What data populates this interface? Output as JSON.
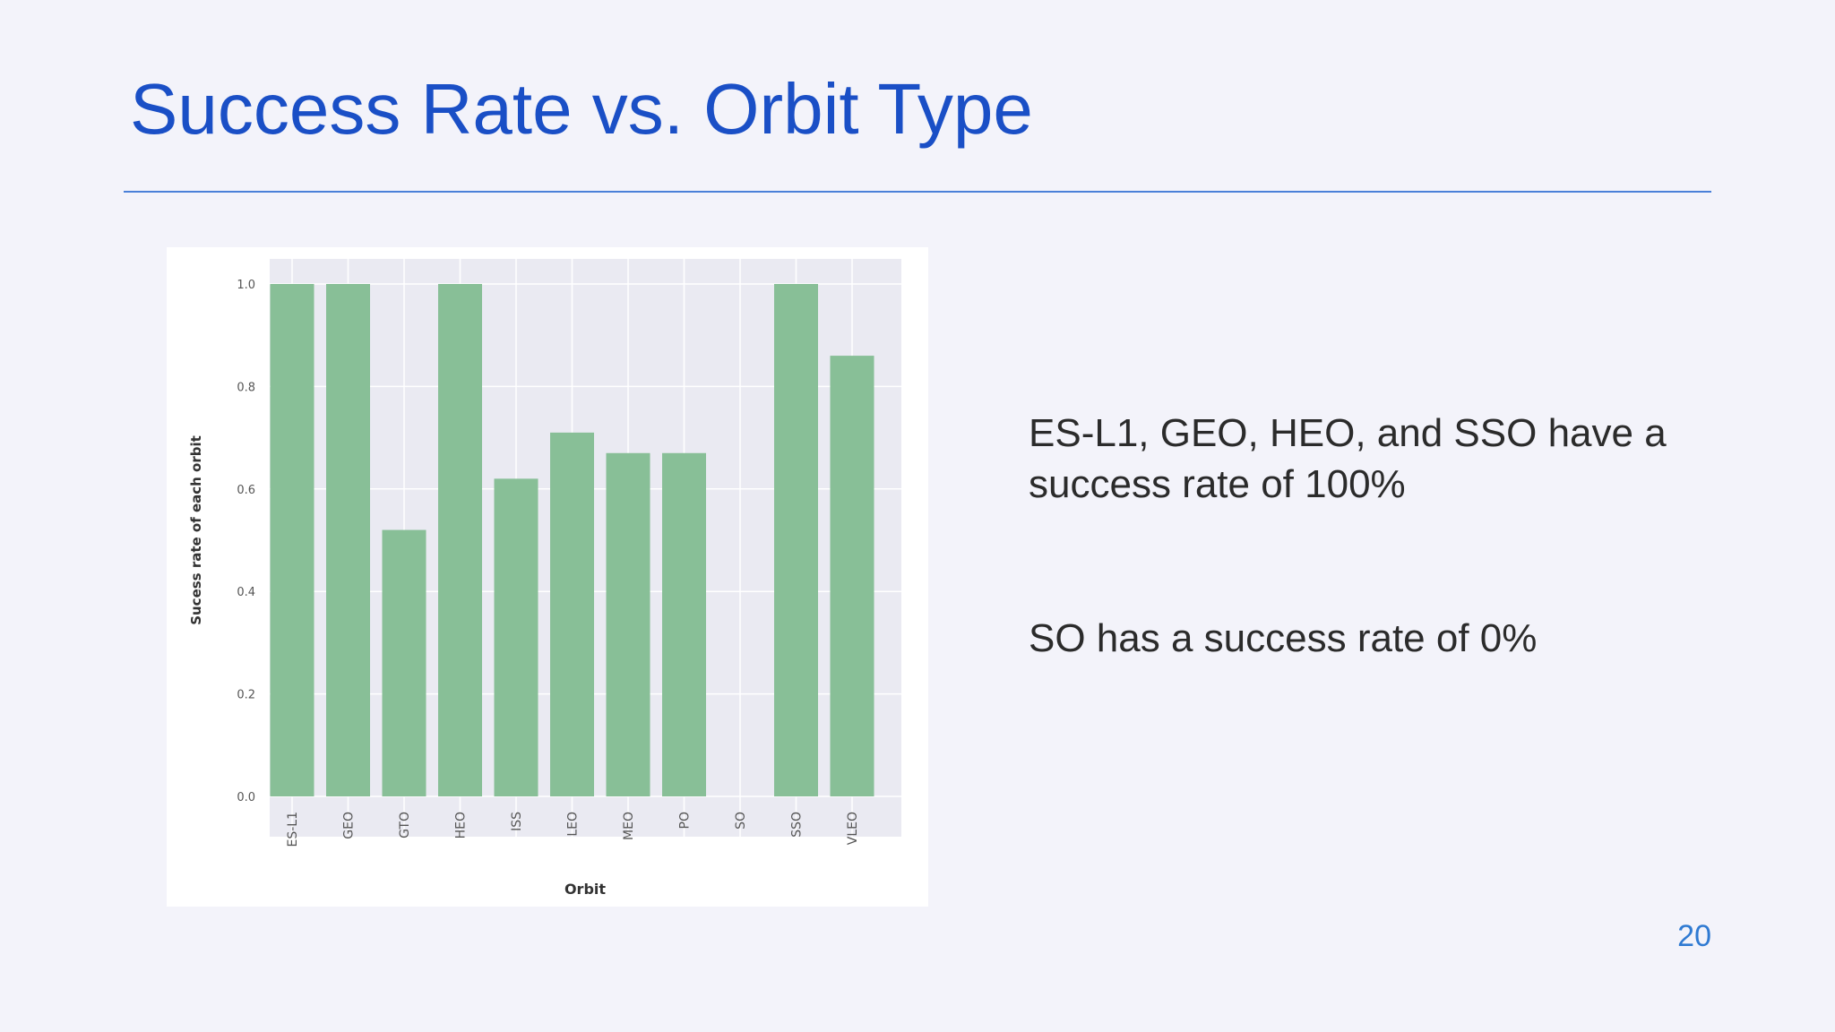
{
  "slide": {
    "title": "Success Rate vs. Orbit Type",
    "bullets": [
      "ES-L1, GEO, HEO, and SSO have a success rate of 100%",
      "SO has a success rate of 0%"
    ],
    "page_number": "20"
  },
  "colors": {
    "title": "#1a4fc6",
    "rule": "#4a80d8",
    "bar": "#88bf97",
    "plot_background": "#eaeaf2",
    "page_number": "#2f7ad2"
  },
  "chart_data": {
    "type": "bar",
    "categories": [
      "ES-L1",
      "GEO",
      "GTO",
      "HEO",
      "ISS",
      "LEO",
      "MEO",
      "PO",
      "SO",
      "SSO",
      "VLEO"
    ],
    "values": [
      1.0,
      1.0,
      0.52,
      1.0,
      0.62,
      0.71,
      0.67,
      0.67,
      0.0,
      1.0,
      0.86
    ],
    "xlabel": "Orbit",
    "ylabel": "Sucess rate of each orbit",
    "yticks": [
      "0.0",
      "0.2",
      "0.4",
      "0.6",
      "0.8",
      "1.0"
    ],
    "ylim": [
      0,
      1.05
    ],
    "grid": true,
    "legend": "none"
  }
}
